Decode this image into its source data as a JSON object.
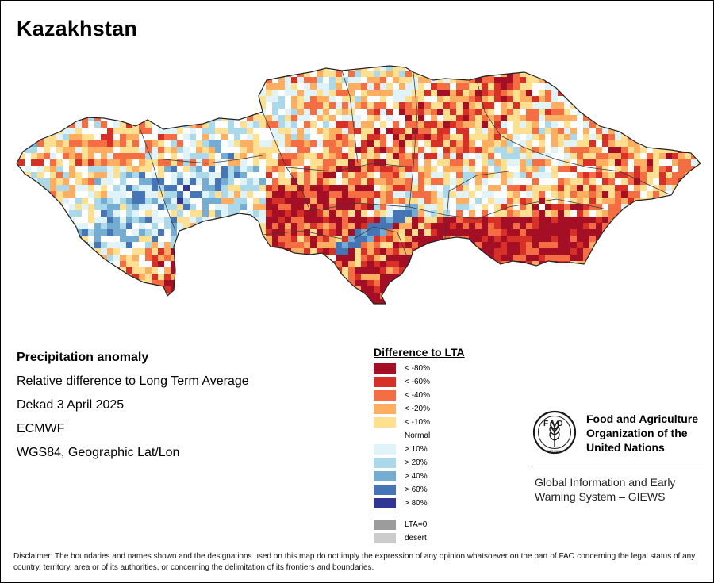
{
  "map": {
    "country": "Kazakhstan",
    "palette": {
      "very_dry": "#a50f26",
      "dry_60": "#d73027",
      "dry_40": "#f46d43",
      "dry_20": "#fdae61",
      "dry_10": "#fee090",
      "normal": "#ffffff",
      "wet_10": "#e0f3f8",
      "wet_20": "#abd9e9",
      "wet_40": "#74add1",
      "wet_60": "#4575b4",
      "wet_80": "#313695"
    }
  },
  "info": {
    "heading": "Precipitation anomaly",
    "subtitle": "Relative difference to Long Term Average",
    "period": "Dekad 3 April 2025",
    "source": "ECMWF",
    "projection": "WGS84, Geographic Lat/Lon"
  },
  "legend": {
    "title": "Difference to LTA",
    "classes": [
      {
        "label": "< -80%",
        "color": "#a50f26"
      },
      {
        "label": "< -60%",
        "color": "#d73027"
      },
      {
        "label": "< -40%",
        "color": "#f46d43"
      },
      {
        "label": "< -20%",
        "color": "#fdae61"
      },
      {
        "label": "< -10%",
        "color": "#fee090"
      },
      {
        "label": "Normal",
        "color": "#ffffff"
      },
      {
        "label": "> 10%",
        "color": "#e0f3f8"
      },
      {
        "label": "> 20%",
        "color": "#abd9e9"
      },
      {
        "label": "> 40%",
        "color": "#74add1"
      },
      {
        "label": "> 60%",
        "color": "#4575b4"
      },
      {
        "label": "> 80%",
        "color": "#313695"
      }
    ],
    "extra": [
      {
        "label": "LTA=0",
        "color": "#9c9c9c"
      },
      {
        "label": "desert",
        "color": "#cccccc"
      }
    ]
  },
  "fao": {
    "logo_text": "FAO",
    "logo_motto": "FIAT PANIS",
    "name": "Food and Agriculture Organization of the United Nations",
    "system": "Global Information and Early Warning System – GIEWS"
  },
  "disclaimer": "Disclaimer: The boundaries and names shown and the designations used on this map do not imply the expression of any opinion whatsoever on the part of FAO concerning the legal status of any country, territory, area or of its authorities, or concerning the delimitation of its frontiers and boundaries."
}
